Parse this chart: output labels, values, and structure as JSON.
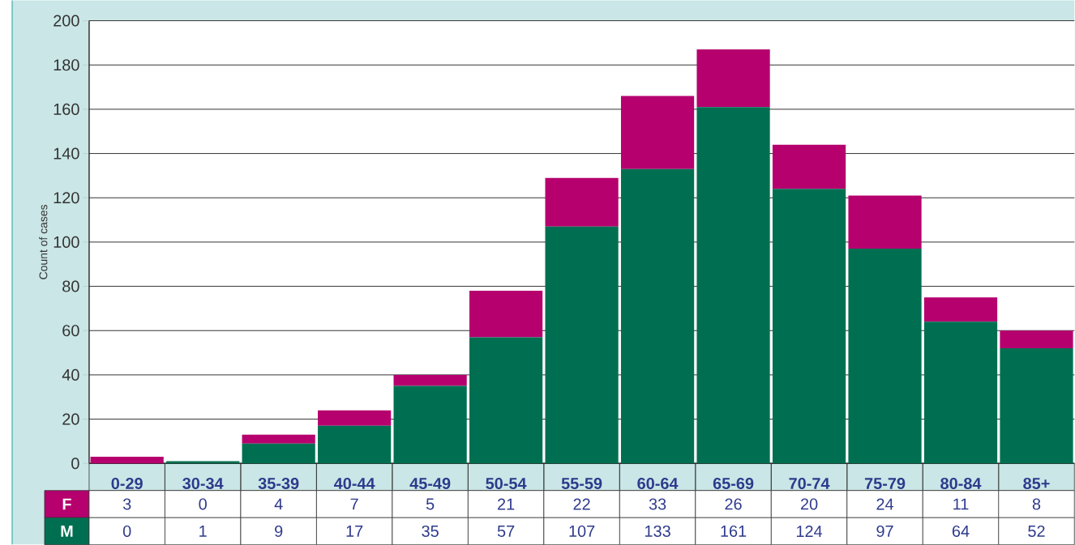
{
  "chart_data": {
    "type": "bar",
    "stacked": true,
    "ylabel": "Count of cases",
    "categories": [
      "0-29",
      "30-34",
      "35-39",
      "40-44",
      "45-49",
      "50-54",
      "55-59",
      "60-64",
      "65-69",
      "70-74",
      "75-79",
      "80-84",
      "85+"
    ],
    "series": [
      {
        "name": "M",
        "color": "#006f51",
        "values": [
          0,
          1,
          9,
          17,
          35,
          57,
          107,
          133,
          161,
          124,
          97,
          64,
          52
        ]
      },
      {
        "name": "F",
        "color": "#b5006e",
        "values": [
          3,
          0,
          4,
          7,
          5,
          21,
          22,
          33,
          26,
          20,
          24,
          11,
          8
        ]
      }
    ],
    "ylim": [
      0,
      200
    ],
    "yticks": [
      0,
      20,
      40,
      60,
      80,
      100,
      120,
      140,
      160,
      180,
      200
    ],
    "grid": "y",
    "data_labels": true
  }
}
